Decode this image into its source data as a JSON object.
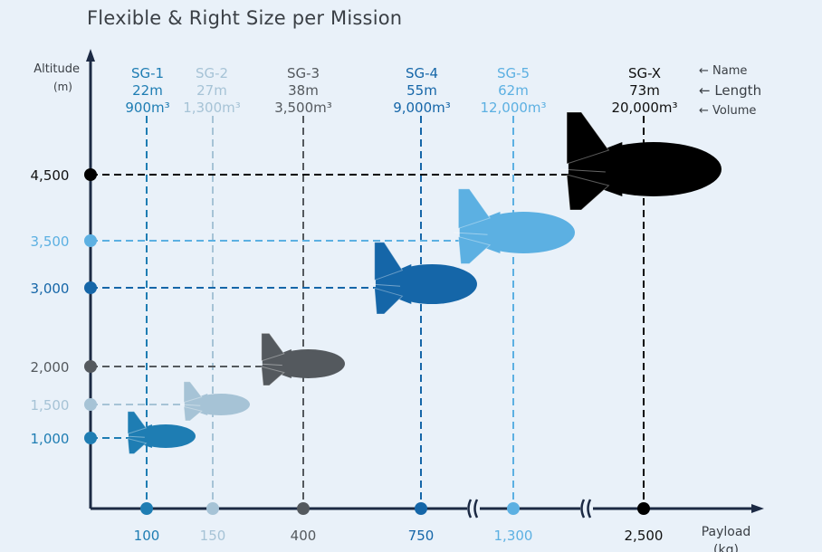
{
  "title": "Flexible & Right Size per Mission",
  "y_axis": {
    "label_line1": "Altitude",
    "label_line2": "(m)"
  },
  "x_axis": {
    "label_line1": "Payload",
    "label_line2": "(kg)"
  },
  "legend": {
    "name": "← Name",
    "length": "← Length",
    "volume": "← Volume"
  },
  "colors": {
    "background": "#e9f1f9",
    "axis": "#1c2a44"
  },
  "models": [
    {
      "name": "SG-1",
      "length": "22m",
      "volume": "900m³",
      "altitude": "1,000",
      "payload": "100",
      "color": "#1e7db3"
    },
    {
      "name": "SG-2",
      "length": "27m",
      "volume": "1,300m³",
      "altitude": "1,500",
      "payload": "150",
      "color": "#a6c3d6"
    },
    {
      "name": "SG-3",
      "length": "38m",
      "volume": "3,500m³",
      "altitude": "2,000",
      "payload": "400",
      "color": "#54595e"
    },
    {
      "name": "SG-4",
      "length": "55m",
      "volume": "9,000m³",
      "altitude": "3,000",
      "payload": "750",
      "color": "#1566a8"
    },
    {
      "name": "SG-5",
      "length": "62m",
      "volume": "12,000m³",
      "altitude": "3,500",
      "payload": "1,300",
      "color": "#5cb0e2"
    },
    {
      "name": "SG-X",
      "length": "73m",
      "volume": "20,000m³",
      "altitude": "4,500",
      "payload": "2,500",
      "color": "#000000"
    }
  ]
}
